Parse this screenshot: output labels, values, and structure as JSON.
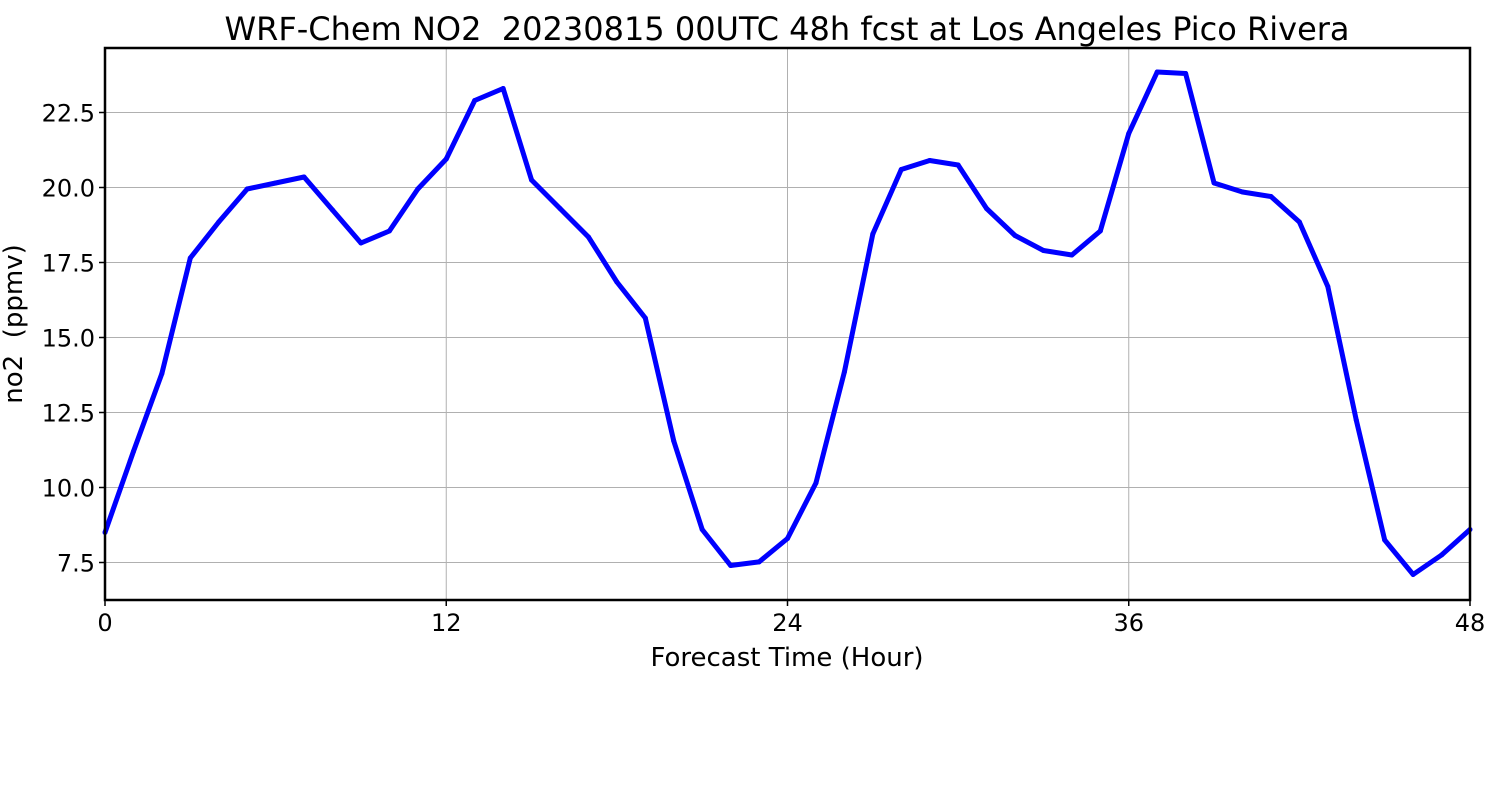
{
  "chart_data": {
    "type": "line",
    "title": "WRF-Chem NO2  20230815 00UTC 48h fcst at Los Angeles Pico Rivera",
    "xlabel": "Forecast Time (Hour)",
    "ylabel": "no2  (ppmv)",
    "xlim": [
      0,
      48
    ],
    "ylim": [
      6.25,
      24.65
    ],
    "x_ticks": [
      0,
      12,
      24,
      36,
      48
    ],
    "x_tick_labels": [
      "0",
      "12",
      "24",
      "36",
      "48"
    ],
    "y_ticks": [
      7.5,
      10.0,
      12.5,
      15.0,
      17.5,
      20.0,
      22.5
    ],
    "y_tick_labels": [
      "7.5",
      "10.0",
      "12.5",
      "15.0",
      "17.5",
      "20.0",
      "22.5"
    ],
    "grid": true,
    "series": [
      {
        "color": "#0000ff",
        "x": [
          0,
          1,
          2,
          3,
          4,
          5,
          6,
          7,
          8,
          9,
          10,
          11,
          12,
          13,
          14,
          15,
          16,
          17,
          18,
          19,
          20,
          21,
          22,
          23,
          24,
          25,
          26,
          27,
          28,
          29,
          30,
          31,
          32,
          33,
          34,
          35,
          36,
          37,
          38,
          39,
          40,
          41,
          42,
          43,
          44,
          45,
          46,
          47,
          48
        ],
        "values": [
          8.5,
          11.2,
          13.8,
          17.65,
          18.85,
          19.95,
          20.15,
          20.35,
          19.25,
          18.15,
          18.55,
          19.95,
          20.95,
          22.9,
          23.3,
          20.25,
          19.3,
          18.35,
          16.85,
          15.65,
          11.55,
          8.6,
          7.4,
          7.52,
          8.3,
          10.15,
          13.85,
          18.45,
          20.6,
          20.9,
          20.75,
          19.3,
          18.4,
          17.9,
          17.75,
          18.55,
          21.8,
          23.85,
          23.8,
          20.15,
          19.85,
          19.7,
          18.85,
          16.7,
          12.25,
          8.25,
          7.1,
          7.75,
          8.6
        ]
      }
    ]
  }
}
